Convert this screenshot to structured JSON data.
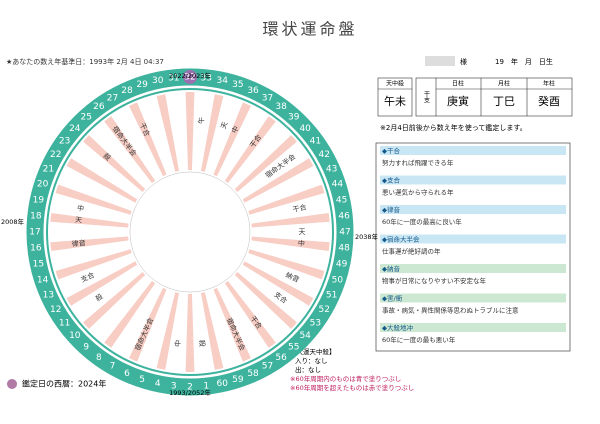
{
  "header": {
    "title": "環状運命盤",
    "base_date": "★あなたの数え年基準日：1993年 2月 4日 04:37",
    "honorific": "様",
    "birth": "19　年　月　日生"
  },
  "wheel": {
    "ring": [
      32,
      33,
      34,
      35,
      36,
      37,
      38,
      39,
      40,
      41,
      42,
      43,
      44,
      45,
      46,
      47,
      48,
      49,
      50,
      51,
      52,
      53,
      54,
      55,
      56,
      57,
      58,
      59,
      60,
      1,
      2,
      3,
      4,
      5,
      6,
      7,
      8,
      9,
      10,
      11,
      12,
      13,
      14,
      15,
      16,
      17,
      18,
      19,
      20,
      21,
      22,
      23,
      24,
      25,
      26,
      27,
      28,
      29,
      30,
      31
    ],
    "current": 32,
    "top_label": "2022/2023年",
    "right_label": "2038年",
    "bottom_label": "1993/2052年",
    "left_label": "2008年",
    "labels": [
      {
        "at": 33,
        "text": "午"
      },
      {
        "at": 35,
        "text": "天"
      },
      {
        "at": 36,
        "text": "中"
      },
      {
        "at": 38,
        "text": "干合"
      },
      {
        "at": 41,
        "text": "宿命大半会"
      },
      {
        "at": 45,
        "text": "干合"
      },
      {
        "at": 47,
        "text": "天"
      },
      {
        "at": 48,
        "text": "中"
      },
      {
        "at": 51,
        "text": "納音"
      },
      {
        "at": 53,
        "text": "支合"
      },
      {
        "at": 56,
        "text": "干合"
      },
      {
        "at": 58,
        "text": "宿命大半会"
      },
      {
        "at": 1,
        "text": "殺"
      },
      {
        "at": 3,
        "text": "中"
      },
      {
        "at": 6,
        "text": "宿命大半会"
      },
      {
        "at": 11,
        "text": "殺"
      },
      {
        "at": 13,
        "text": "支合"
      },
      {
        "at": 16,
        "text": "律音"
      },
      {
        "at": 18,
        "text": "天"
      },
      {
        "at": 19,
        "text": "中"
      },
      {
        "at": 24,
        "text": "殺"
      },
      {
        "at": 26,
        "text": "宿命大半会"
      },
      {
        "at": 28,
        "text": "干合"
      }
    ]
  },
  "table": {
    "tenchu_header": "天中殺",
    "tenchu": "午未",
    "kanshi": "干支",
    "columns": [
      "日柱",
      "月柱",
      "年柱"
    ],
    "values": [
      "庚寅",
      "丁巳",
      "癸酉"
    ],
    "note": "※2月4日前後から数え年を使って鑑定します。"
  },
  "legend": [
    {
      "title": "◆干合",
      "text": "努力すれば飛躍できる年",
      "color": "#c9e6f5"
    },
    {
      "title": "◆支合",
      "text": "悪い運気から守られる年",
      "color": "#c9e6f5"
    },
    {
      "title": "◆律音",
      "text": "60年に一度の最高に良い年",
      "color": "#c9e6f5"
    },
    {
      "title": "◆宿命大半会",
      "text": "仕事運が絶好調の年",
      "color": "#c9e6f5"
    },
    {
      "title": "◆納音",
      "text": "物事が日常になりやすい不安定な年",
      "color": "#cde8d2"
    },
    {
      "title": "◆害/衝",
      "text": "事故・病気・異性関係等思わぬトラブルに注意",
      "color": "#cde8d2"
    },
    {
      "title": "◆大殺地冲",
      "text": "60年に一度の最も悪い年",
      "color": "#cde8d2"
    }
  ],
  "footer": {
    "daiun_title": "【大運天中殺】",
    "entry": "入り：なし",
    "exit": "出：なし",
    "note_blue": "※60年周期内のものは青で塗りつぶし",
    "note_red": "※60年周期を超えたものは赤で塗りつぶし",
    "date": "鑑定日の西暦：2024年"
  }
}
